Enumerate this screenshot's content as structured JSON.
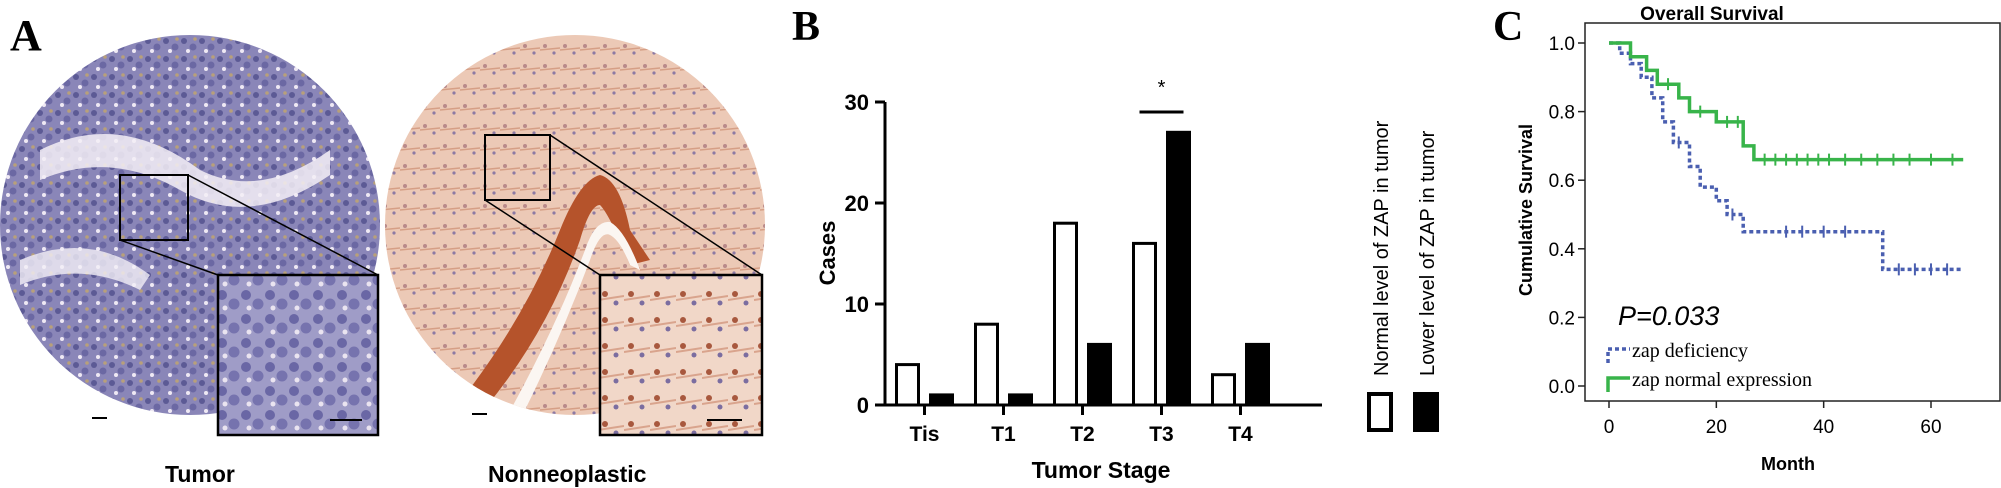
{
  "panel_a": {
    "letter": "A",
    "images": [
      {
        "label": "Tumor",
        "tissue_color": "#6f6fa6"
      },
      {
        "label": "Nonneoplastic",
        "tissue_color": "#d9a08a"
      }
    ]
  },
  "chart_data": [
    {
      "panel": "B",
      "type": "bar",
      "title": "",
      "xlabel": "Tumor Stage",
      "ylabel": "Cases",
      "categories": [
        "Tis",
        "T1",
        "T2",
        "T3",
        "T4"
      ],
      "series": [
        {
          "name": "Normal level of ZAP in tumor",
          "values": [
            4,
            8,
            18,
            16,
            3
          ],
          "fill": "#ffffff"
        },
        {
          "name": "Lower level of ZAP in tumor",
          "values": [
            1,
            1,
            6,
            27,
            6
          ],
          "fill": "#000000"
        }
      ],
      "ylim": [
        0,
        30
      ],
      "yticks": [
        0,
        10,
        20,
        30
      ],
      "annotations": [
        {
          "text": "*",
          "category": "T3"
        }
      ],
      "legend_position": "right"
    },
    {
      "panel": "C",
      "type": "line",
      "title": "Overall Survival",
      "xlabel": "Month",
      "ylabel": "Cumulative Survival",
      "xlim": [
        0,
        70
      ],
      "ylim": [
        0,
        1.05
      ],
      "xticks": [
        0,
        20,
        40,
        60
      ],
      "yticks": [
        0.0,
        0.2,
        0.4,
        0.6,
        0.8,
        1.0
      ],
      "annotations": [
        {
          "text": "P=0.033"
        }
      ],
      "series": [
        {
          "name": "zap deficiency",
          "color": "#4a5fb0",
          "style": "dotted",
          "steps": [
            [
              0,
              1.0
            ],
            [
              2,
              1.0
            ],
            [
              2,
              0.97
            ],
            [
              4,
              0.97
            ],
            [
              4,
              0.94
            ],
            [
              6,
              0.94
            ],
            [
              6,
              0.9
            ],
            [
              8,
              0.9
            ],
            [
              8,
              0.84
            ],
            [
              10,
              0.84
            ],
            [
              10,
              0.77
            ],
            [
              12,
              0.77
            ],
            [
              12,
              0.71
            ],
            [
              15,
              0.71
            ],
            [
              15,
              0.64
            ],
            [
              17,
              0.64
            ],
            [
              17,
              0.58
            ],
            [
              20,
              0.58
            ],
            [
              20,
              0.54
            ],
            [
              22,
              0.54
            ],
            [
              22,
              0.5
            ],
            [
              25,
              0.5
            ],
            [
              25,
              0.45
            ],
            [
              51,
              0.45
            ],
            [
              51,
              0.34
            ],
            [
              66,
              0.34
            ]
          ],
          "censored": [
            [
              13,
              0.71
            ],
            [
              23,
              0.5
            ],
            [
              33,
              0.45
            ],
            [
              36,
              0.45
            ],
            [
              40,
              0.45
            ],
            [
              44,
              0.45
            ],
            [
              54,
              0.34
            ],
            [
              57,
              0.34
            ],
            [
              60,
              0.34
            ],
            [
              63,
              0.34
            ]
          ]
        },
        {
          "name": "zap normal expression",
          "color": "#38b44a",
          "style": "solid",
          "steps": [
            [
              0,
              1.0
            ],
            [
              4,
              1.0
            ],
            [
              4,
              0.96
            ],
            [
              7,
              0.96
            ],
            [
              7,
              0.92
            ],
            [
              9,
              0.92
            ],
            [
              9,
              0.88
            ],
            [
              13,
              0.88
            ],
            [
              13,
              0.84
            ],
            [
              15,
              0.84
            ],
            [
              15,
              0.8
            ],
            [
              20,
              0.8
            ],
            [
              20,
              0.77
            ],
            [
              25,
              0.77
            ],
            [
              25,
              0.7
            ],
            [
              27,
              0.7
            ],
            [
              27,
              0.66
            ],
            [
              66,
              0.66
            ]
          ],
          "censored": [
            [
              11,
              0.88
            ],
            [
              17,
              0.8
            ],
            [
              22,
              0.77
            ],
            [
              24,
              0.77
            ],
            [
              29,
              0.66
            ],
            [
              31,
              0.66
            ],
            [
              33,
              0.66
            ],
            [
              35,
              0.66
            ],
            [
              37,
              0.66
            ],
            [
              39,
              0.66
            ],
            [
              41,
              0.66
            ],
            [
              44,
              0.66
            ],
            [
              47,
              0.66
            ],
            [
              50,
              0.66
            ],
            [
              53,
              0.66
            ],
            [
              56,
              0.66
            ],
            [
              60,
              0.66
            ],
            [
              64,
              0.66
            ]
          ]
        }
      ]
    }
  ],
  "panel_b": {
    "letter": "B"
  },
  "panel_c": {
    "letter": "C"
  }
}
